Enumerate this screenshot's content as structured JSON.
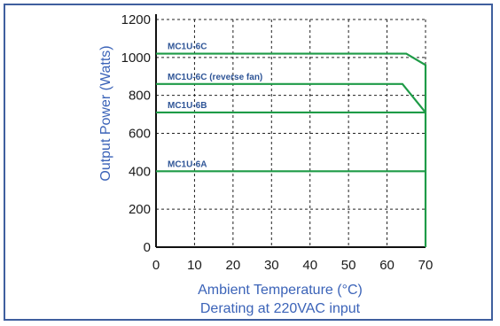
{
  "chart_data": {
    "type": "line",
    "title": "",
    "subtitle": "Derating at 220VAC input",
    "xlabel": "Ambient Temperature (°C)",
    "ylabel": "Output Power (Watts)",
    "xlim": [
      0,
      70
    ],
    "ylim": [
      0,
      1200
    ],
    "xticks": [
      0,
      10,
      20,
      30,
      40,
      50,
      60,
      70
    ],
    "yticks": [
      0,
      200,
      400,
      600,
      800,
      1000,
      1200
    ],
    "grid": true,
    "colors": {
      "line": "#1e9b47",
      "label": "#2f5597",
      "axis_title": "#3b63b8",
      "frame": "#3f5f9e"
    },
    "series": [
      {
        "name": "MC1U-6C",
        "points": [
          [
            0,
            1020
          ],
          [
            65,
            1020
          ],
          [
            70,
            960
          ],
          [
            70,
            0
          ]
        ]
      },
      {
        "name": "MC1U-6C (reverse fan)",
        "points": [
          [
            0,
            860
          ],
          [
            64,
            860
          ],
          [
            70,
            710
          ]
        ]
      },
      {
        "name": "MC1U-6B",
        "points": [
          [
            0,
            710
          ],
          [
            70,
            710
          ]
        ]
      },
      {
        "name": "MC1U-6A",
        "points": [
          [
            0,
            400
          ],
          [
            70,
            400
          ]
        ]
      }
    ]
  }
}
